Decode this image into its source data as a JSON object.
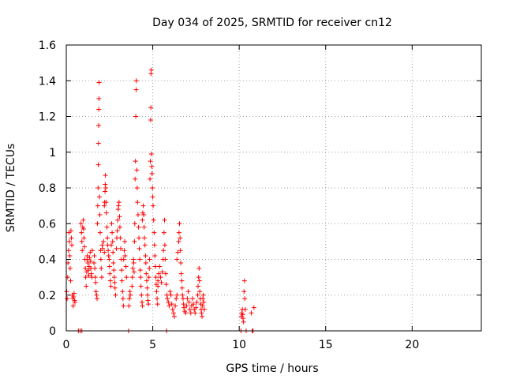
{
  "chart_data": {
    "type": "scatter",
    "title": "Day 034 of 2025, SRMTID for receiver cn12",
    "xlabel": "GPS time / hours",
    "ylabel": "SRMTID / TECUs",
    "xlim": [
      0,
      24
    ],
    "ylim": [
      0,
      1.6
    ],
    "xticks": [
      0,
      5,
      10,
      15,
      20
    ],
    "yticks": [
      0,
      0.2,
      0.4,
      0.6,
      0.8,
      1,
      1.2,
      1.4,
      1.6
    ],
    "xtick_labels": [
      "0",
      "5",
      "10",
      "15",
      "20"
    ],
    "ytick_labels": [
      "0",
      "0.2",
      "0.4",
      "0.6",
      "0.8",
      "1",
      "1.2",
      "1.4",
      "1.6"
    ],
    "grid": true,
    "marker": "plus",
    "marker_color": "#ff0000",
    "series": [
      {
        "name": "SRMTID",
        "points": [
          [
            0.02,
            0.22
          ],
          [
            0.05,
            0.18
          ],
          [
            0.08,
            0.3
          ],
          [
            0.1,
            0.38
          ],
          [
            0.13,
            0.45
          ],
          [
            0.15,
            0.55
          ],
          [
            0.18,
            0.5
          ],
          [
            0.2,
            0.42
          ],
          [
            0.22,
            0.35
          ],
          [
            0.25,
            0.28
          ],
          [
            0.27,
            0.56
          ],
          [
            0.3,
            0.52
          ],
          [
            0.32,
            0.48
          ],
          [
            0.35,
            0.2
          ],
          [
            0.38,
            0.18
          ],
          [
            0.4,
            0.14
          ],
          [
            0.42,
            0.19
          ],
          [
            0.45,
            0.21
          ],
          [
            0.48,
            0.17
          ],
          [
            0.5,
            0.16
          ],
          [
            0.7,
            0.0
          ],
          [
            0.8,
            0.0
          ],
          [
            0.9,
            0.0
          ],
          [
            0.85,
            0.6
          ],
          [
            0.88,
            0.55
          ],
          [
            0.9,
            0.5
          ],
          [
            0.92,
            0.45
          ],
          [
            0.95,
            0.58
          ],
          [
            0.98,
            0.62
          ],
          [
            1.0,
            0.57
          ],
          [
            1.02,
            0.52
          ],
          [
            1.05,
            0.47
          ],
          [
            1.08,
            0.4
          ],
          [
            1.1,
            0.35
          ],
          [
            1.12,
            0.3
          ],
          [
            1.15,
            0.25
          ],
          [
            1.18,
            0.33
          ],
          [
            1.2,
            0.4
          ],
          [
            1.22,
            0.42
          ],
          [
            1.25,
            0.38
          ],
          [
            1.28,
            0.34
          ],
          [
            1.3,
            0.31
          ],
          [
            1.32,
            0.36
          ],
          [
            1.35,
            0.41
          ],
          [
            1.38,
            0.44
          ],
          [
            1.4,
            0.39
          ],
          [
            1.42,
            0.35
          ],
          [
            1.45,
            0.32
          ],
          [
            1.48,
            0.3
          ],
          [
            1.5,
            0.45
          ],
          [
            1.6,
            0.38
          ],
          [
            1.62,
            0.42
          ],
          [
            1.65,
            0.35
          ],
          [
            1.68,
            0.3
          ],
          [
            1.7,
            0.27
          ],
          [
            1.72,
            0.22
          ],
          [
            1.75,
            0.2
          ],
          [
            1.78,
            0.18
          ],
          [
            1.8,
            0.6
          ],
          [
            1.82,
            0.7
          ],
          [
            1.84,
            0.8
          ],
          [
            1.85,
            0.93
          ],
          [
            1.86,
            1.05
          ],
          [
            1.87,
            1.15
          ],
          [
            1.88,
            1.24
          ],
          [
            1.89,
            1.3
          ],
          [
            1.9,
            1.39
          ],
          [
            1.92,
            0.75
          ],
          [
            1.94,
            0.65
          ],
          [
            1.96,
            0.55
          ],
          [
            1.98,
            0.45
          ],
          [
            2.0,
            0.4
          ],
          [
            2.02,
            0.35
          ],
          [
            2.05,
            0.3
          ],
          [
            2.08,
            0.48
          ],
          [
            2.1,
            0.46
          ],
          [
            2.15,
            0.5
          ],
          [
            2.2,
            0.44
          ],
          [
            2.2,
            0.7
          ],
          [
            2.22,
            0.72
          ],
          [
            2.24,
            0.78
          ],
          [
            2.25,
            0.82
          ],
          [
            2.26,
            0.87
          ],
          [
            2.28,
            0.8
          ],
          [
            2.3,
            0.72
          ],
          [
            2.32,
            0.66
          ],
          [
            2.35,
            0.58
          ],
          [
            2.38,
            0.52
          ],
          [
            2.4,
            0.48
          ],
          [
            2.42,
            0.45
          ],
          [
            2.45,
            0.42
          ],
          [
            2.48,
            0.4
          ],
          [
            2.5,
            0.36
          ],
          [
            2.52,
            0.32
          ],
          [
            2.55,
            0.28
          ],
          [
            2.58,
            0.25
          ],
          [
            2.6,
            0.48
          ],
          [
            2.62,
            0.6
          ],
          [
            2.65,
            0.55
          ],
          [
            2.68,
            0.5
          ],
          [
            2.7,
            0.44
          ],
          [
            2.72,
            0.38
          ],
          [
            2.75,
            0.34
          ],
          [
            2.78,
            0.3
          ],
          [
            2.8,
            0.27
          ],
          [
            2.82,
            0.24
          ],
          [
            2.85,
            0.2
          ],
          [
            2.9,
            0.46
          ],
          [
            2.92,
            0.52
          ],
          [
            2.95,
            0.56
          ],
          [
            2.98,
            0.62
          ],
          [
            3.0,
            0.68
          ],
          [
            3.02,
            0.7
          ],
          [
            3.05,
            0.72
          ],
          [
            3.08,
            0.64
          ],
          [
            3.1,
            0.58
          ],
          [
            3.12,
            0.52
          ],
          [
            3.15,
            0.46
          ],
          [
            3.18,
            0.4
          ],
          [
            3.2,
            0.34
          ],
          [
            3.22,
            0.28
          ],
          [
            3.25,
            0.22
          ],
          [
            3.28,
            0.18
          ],
          [
            3.3,
            0.14
          ],
          [
            3.32,
            0.4
          ],
          [
            3.35,
            0.45
          ],
          [
            3.38,
            0.5
          ],
          [
            3.4,
            0.42
          ],
          [
            3.45,
            0.36
          ],
          [
            3.48,
            0.3
          ],
          [
            3.6,
            0.0
          ],
          [
            3.62,
            0.14
          ],
          [
            3.65,
            0.18
          ],
          [
            3.68,
            0.22
          ],
          [
            3.7,
            0.2
          ],
          [
            3.8,
            0.25
          ],
          [
            3.82,
            0.3
          ],
          [
            3.85,
            0.35
          ],
          [
            3.88,
            0.4
          ],
          [
            3.9,
            0.38
          ],
          [
            3.92,
            0.33
          ],
          [
            3.94,
            0.5
          ],
          [
            3.96,
            0.6
          ],
          [
            3.98,
            0.85
          ],
          [
            4.0,
            0.95
          ],
          [
            4.02,
            1.2
          ],
          [
            4.04,
            1.35
          ],
          [
            4.05,
            1.4
          ],
          [
            4.08,
            0.9
          ],
          [
            4.1,
            0.8
          ],
          [
            4.12,
            0.72
          ],
          [
            4.15,
            0.65
          ],
          [
            4.18,
            0.58
          ],
          [
            4.2,
            0.52
          ],
          [
            4.22,
            0.46
          ],
          [
            4.25,
            0.4
          ],
          [
            4.28,
            0.34
          ],
          [
            4.3,
            0.3
          ],
          [
            4.32,
            0.25
          ],
          [
            4.35,
            0.2
          ],
          [
            4.38,
            0.16
          ],
          [
            4.4,
            0.14
          ],
          [
            4.4,
            0.62
          ],
          [
            4.42,
            0.66
          ],
          [
            4.45,
            0.7
          ],
          [
            4.48,
            0.65
          ],
          [
            4.5,
            0.58
          ],
          [
            4.52,
            0.52
          ],
          [
            4.55,
            0.48
          ],
          [
            4.58,
            0.42
          ],
          [
            4.6,
            0.38
          ],
          [
            4.62,
            0.32
          ],
          [
            4.65,
            0.28
          ],
          [
            4.68,
            0.24
          ],
          [
            4.7,
            0.2
          ],
          [
            4.72,
            0.17
          ],
          [
            4.75,
            0.15
          ],
          [
            4.78,
            0.3
          ],
          [
            4.8,
            0.35
          ],
          [
            4.82,
            0.4
          ],
          [
            4.84,
            0.85
          ],
          [
            4.86,
            0.95
          ],
          [
            4.88,
            1.18
          ],
          [
            4.89,
            1.25
          ],
          [
            4.9,
            1.44
          ],
          [
            4.91,
            1.46
          ],
          [
            4.92,
            0.99
          ],
          [
            4.94,
            0.92
          ],
          [
            4.96,
            0.88
          ],
          [
            4.98,
            0.8
          ],
          [
            5.0,
            0.75
          ],
          [
            5.02,
            0.7
          ],
          [
            5.05,
            0.62
          ],
          [
            5.08,
            0.55
          ],
          [
            5.1,
            0.48
          ],
          [
            5.12,
            0.42
          ],
          [
            5.15,
            0.36
          ],
          [
            5.18,
            0.3
          ],
          [
            5.2,
            0.26
          ],
          [
            5.22,
            0.22
          ],
          [
            5.25,
            0.18
          ],
          [
            5.28,
            0.15
          ],
          [
            5.3,
            0.25
          ],
          [
            5.3,
            0.28
          ],
          [
            5.35,
            0.32
          ],
          [
            5.4,
            0.36
          ],
          [
            5.45,
            0.3
          ],
          [
            5.5,
            0.27
          ],
          [
            5.55,
            0.33
          ],
          [
            5.6,
            0.4
          ],
          [
            5.62,
            0.45
          ],
          [
            5.65,
            0.55
          ],
          [
            5.68,
            0.62
          ],
          [
            5.7,
            0.48
          ],
          [
            5.72,
            0.4
          ],
          [
            5.75,
            0.32
          ],
          [
            5.78,
            0.26
          ],
          [
            5.8,
            0.0
          ],
          [
            5.82,
            0.2
          ],
          [
            5.85,
            0.18
          ],
          [
            5.9,
            0.16
          ],
          [
            5.95,
            0.14
          ],
          [
            6.0,
            0.22
          ],
          [
            6.05,
            0.2
          ],
          [
            6.1,
            0.15
          ],
          [
            6.15,
            0.12
          ],
          [
            6.2,
            0.1
          ],
          [
            6.25,
            0.08
          ],
          [
            6.3,
            0.14
          ],
          [
            6.35,
            0.18
          ],
          [
            6.4,
            0.2
          ],
          [
            6.4,
            0.4
          ],
          [
            6.45,
            0.44
          ],
          [
            6.5,
            0.5
          ],
          [
            6.52,
            0.55
          ],
          [
            6.55,
            0.6
          ],
          [
            6.58,
            0.52
          ],
          [
            6.6,
            0.45
          ],
          [
            6.62,
            0.38
          ],
          [
            6.65,
            0.32
          ],
          [
            6.68,
            0.28
          ],
          [
            6.7,
            0.24
          ],
          [
            6.72,
            0.2
          ],
          [
            6.75,
            0.18
          ],
          [
            6.78,
            0.15
          ],
          [
            6.8,
            0.13
          ],
          [
            6.85,
            0.11
          ],
          [
            6.9,
            0.1
          ],
          [
            6.95,
            0.14
          ],
          [
            7.0,
            0.18
          ],
          [
            7.05,
            0.22
          ],
          [
            7.1,
            0.16
          ],
          [
            7.15,
            0.12
          ],
          [
            7.2,
            0.1
          ],
          [
            7.25,
            0.14
          ],
          [
            7.3,
            0.18
          ],
          [
            7.35,
            0.15
          ],
          [
            7.4,
            0.12
          ],
          [
            7.45,
            0.1
          ],
          [
            7.5,
            0.13
          ],
          [
            7.55,
            0.16
          ],
          [
            7.6,
            0.2
          ],
          [
            7.62,
            0.25
          ],
          [
            7.65,
            0.3
          ],
          [
            7.68,
            0.35
          ],
          [
            7.7,
            0.28
          ],
          [
            7.72,
            0.22
          ],
          [
            7.75,
            0.18
          ],
          [
            7.78,
            0.15
          ],
          [
            7.8,
            0.12
          ],
          [
            7.82,
            0.1
          ],
          [
            7.85,
            0.08
          ],
          [
            7.88,
            0.14
          ],
          [
            7.9,
            0.18
          ],
          [
            7.92,
            0.2
          ],
          [
            7.95,
            0.16
          ],
          [
            7.98,
            0.12
          ],
          [
            10.1,
            0.0
          ],
          [
            10.12,
            0.08
          ],
          [
            10.15,
            0.1
          ],
          [
            10.18,
            0.12
          ],
          [
            10.2,
            0.09
          ],
          [
            10.22,
            0.07
          ],
          [
            10.25,
            0.05
          ],
          [
            10.28,
            0.22
          ],
          [
            10.3,
            0.28
          ],
          [
            10.32,
            0.18
          ],
          [
            10.35,
            0.12
          ],
          [
            10.4,
            0.0
          ],
          [
            10.7,
            0.1
          ],
          [
            10.75,
            0.0
          ],
          [
            10.8,
            0.0
          ],
          [
            10.85,
            0.13
          ]
        ]
      }
    ]
  }
}
